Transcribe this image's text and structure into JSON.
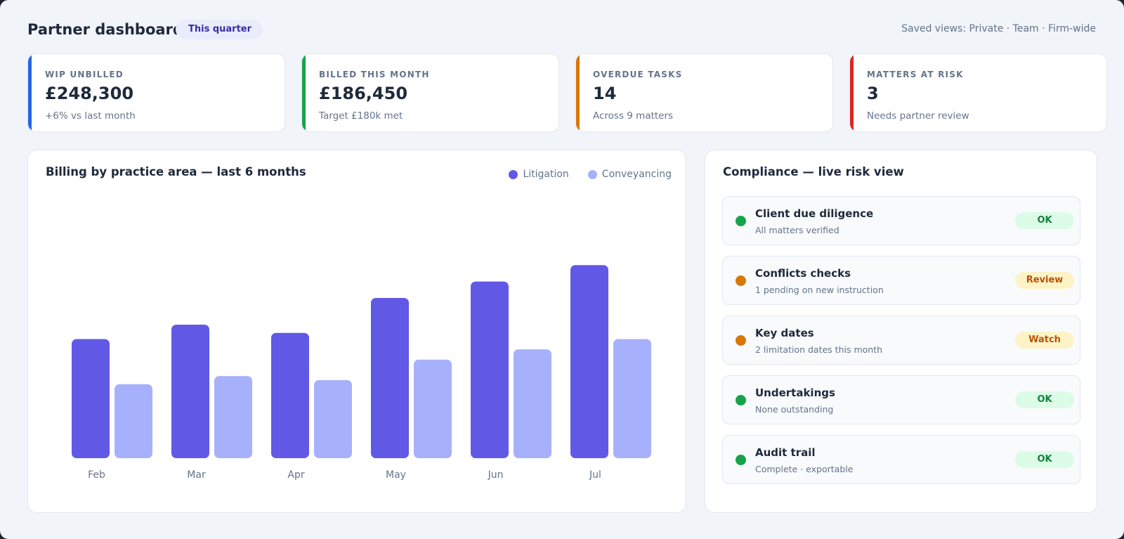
{
  "header": {
    "title": "Partner dashboard",
    "period_chip": "This quarter",
    "saved_views": "Saved views: Private · Team · Firm-wide"
  },
  "kpis": [
    {
      "label": "WIP UNBILLED",
      "value": "£248,300",
      "note": "+6% vs last month",
      "accent": "#2563eb"
    },
    {
      "label": "BILLED THIS MONTH",
      "value": "£186,450",
      "note": "Target £180k met",
      "accent": "#16a34a"
    },
    {
      "label": "OVERDUE TASKS",
      "value": "14",
      "note": "Across 9 matters",
      "accent": "#d97706"
    },
    {
      "label": "MATTERS AT RISK",
      "value": "3",
      "note": "Needs partner review",
      "accent": "#dc2626"
    }
  ],
  "billing": {
    "title": "Billing by practice area — last 6 months"
  },
  "chart_data": {
    "type": "bar",
    "title": "Billing by practice area — last 6 months",
    "categories": [
      "Feb",
      "Mar",
      "Apr",
      "May",
      "Jun",
      "Jul"
    ],
    "series": [
      {
        "name": "Litigation",
        "color": "#6159e6",
        "values": [
          58,
          65,
          61,
          78,
          86,
          94
        ]
      },
      {
        "name": "Conveyancing",
        "color": "#a7b1fb",
        "values": [
          36,
          40,
          38,
          48,
          53,
          58
        ]
      }
    ],
    "ylim": [
      0,
      130
    ],
    "grid": false,
    "legend": "top-right",
    "xlabel": "",
    "ylabel": ""
  },
  "compliance": {
    "title": "Compliance — live risk view",
    "items": [
      {
        "title": "Client due diligence",
        "subtitle": "All matters verified",
        "status": "OK",
        "dot": "#16a34a",
        "badge_bg": "#dcfce7",
        "badge_fg": "#15803d"
      },
      {
        "title": "Conflicts checks",
        "subtitle": "1 pending on new instruction",
        "status": "Review",
        "dot": "#d97706",
        "badge_bg": "#fef3c7",
        "badge_fg": "#b45309"
      },
      {
        "title": "Key dates",
        "subtitle": "2 limitation dates this month",
        "status": "Watch",
        "dot": "#d97706",
        "badge_bg": "#fef3c7",
        "badge_fg": "#b45309"
      },
      {
        "title": "Undertakings",
        "subtitle": "None outstanding",
        "status": "OK",
        "dot": "#16a34a",
        "badge_bg": "#dcfce7",
        "badge_fg": "#15803d"
      },
      {
        "title": "Audit trail",
        "subtitle": "Complete · exportable",
        "status": "OK",
        "dot": "#16a34a",
        "badge_bg": "#dcfce7",
        "badge_fg": "#15803d"
      }
    ]
  }
}
